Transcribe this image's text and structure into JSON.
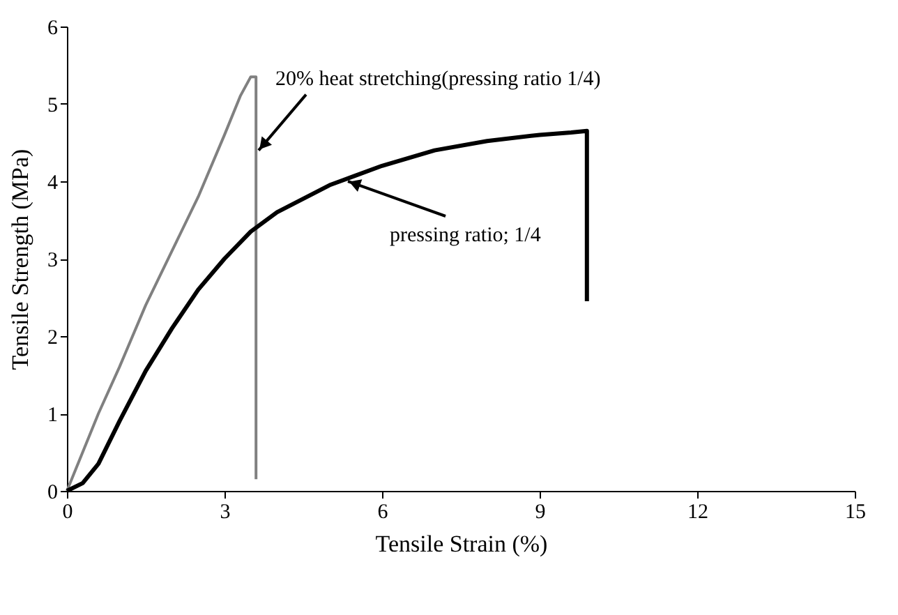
{
  "chart_data": {
    "type": "line",
    "xlabel": "Tensile Strain (%)",
    "ylabel": "Tensile Strength (MPa)",
    "xlim": [
      0,
      15
    ],
    "xticks": [
      0,
      3,
      6,
      9,
      12,
      15
    ],
    "ylim": [
      0,
      6
    ],
    "yticks": [
      0,
      1,
      2,
      3,
      4,
      5,
      6
    ],
    "series": [
      {
        "color": "#808080",
        "x": [
          0,
          0.3,
          0.6,
          1,
          1.5,
          2,
          2.5,
          3,
          3.3,
          3.5,
          3.6,
          3.6
        ],
        "values": [
          0,
          0.5,
          1.0,
          1.6,
          2.4,
          3.1,
          3.8,
          4.6,
          5.1,
          5.35,
          5.35,
          0.15
        ]
      },
      {
        "color": "#000000",
        "x": [
          0,
          0.3,
          0.6,
          1,
          1.5,
          2,
          2.5,
          3,
          3.5,
          4,
          5,
          6,
          7,
          8,
          9,
          9.6,
          9.9,
          9.9
        ],
        "values": [
          0,
          0.1,
          0.35,
          0.9,
          1.55,
          2.1,
          2.6,
          3.0,
          3.35,
          3.6,
          3.95,
          4.2,
          4.4,
          4.52,
          4.6,
          4.63,
          4.65,
          2.45
        ]
      }
    ],
    "annotations": [
      {
        "text": "20% heat stretching(pressing ratio 1/4)",
        "x": 3.65,
        "y": 4.4
      },
      {
        "text": "pressing ratio; 1/4",
        "x": 5.35,
        "y": 4.0
      }
    ]
  }
}
